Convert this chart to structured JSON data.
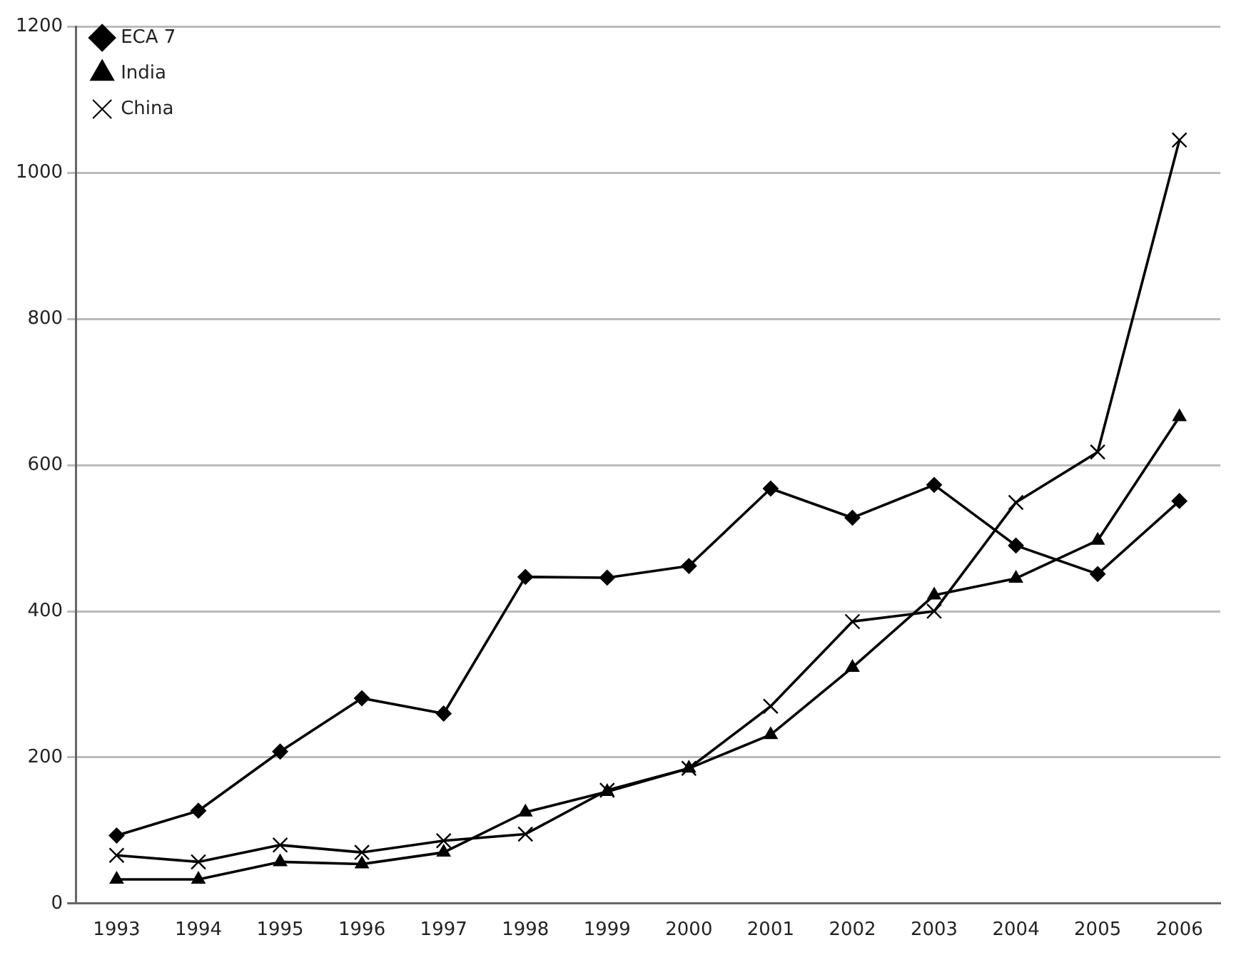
{
  "chart_data": {
    "type": "line",
    "categories": [
      "1993",
      "1994",
      "1995",
      "1996",
      "1997",
      "1998",
      "1999",
      "2000",
      "2001",
      "2002",
      "2003",
      "2004",
      "2005",
      "2006"
    ],
    "series": [
      {
        "name": "ECA 7",
        "color": "#000000",
        "marker": "diamond",
        "values": [
          93,
          127,
          208,
          281,
          260,
          447,
          446,
          462,
          568,
          528,
          573,
          490,
          451,
          551
        ]
      },
      {
        "name": "India",
        "color": "#000000",
        "marker": "triangle",
        "values": [
          33,
          33,
          57,
          54,
          70,
          125,
          153,
          185,
          231,
          323,
          422,
          445,
          497,
          666
        ]
      },
      {
        "name": "China",
        "color": "#000000",
        "marker": "cross",
        "values": [
          66,
          57,
          80,
          70,
          86,
          95,
          155,
          185,
          270,
          386,
          400,
          549,
          618,
          1045
        ]
      }
    ],
    "ylim": [
      0,
      1200
    ],
    "yticks": [
      0,
      200,
      400,
      600,
      800,
      1000,
      1200
    ],
    "grid": "y",
    "legend": "top left"
  }
}
